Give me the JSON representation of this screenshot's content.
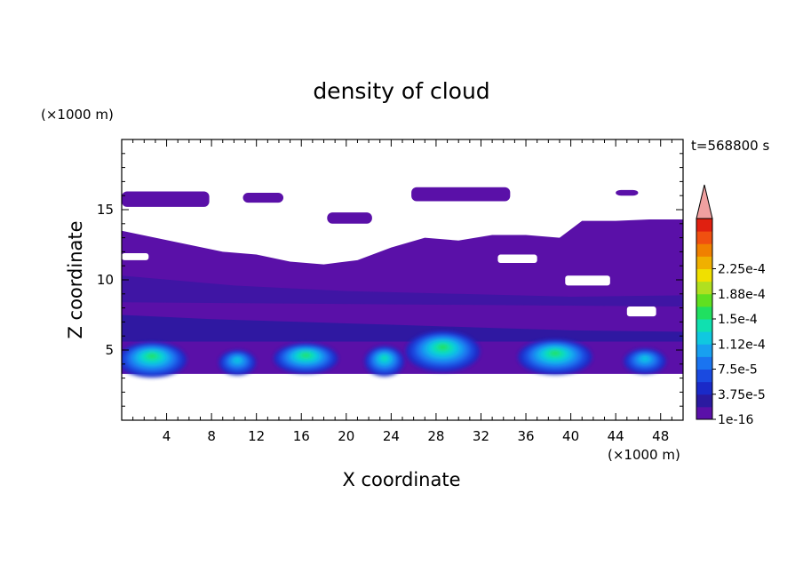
{
  "chart_data": {
    "type": "heatmap",
    "title": "density of cloud",
    "xlabel": "X coordinate",
    "ylabel": "Z coordinate",
    "x_unit": "(×1000 m)",
    "y_unit": "(×1000 m)",
    "time_label": "t=568800 s",
    "xlim": [
      0,
      50
    ],
    "ylim": [
      0,
      20
    ],
    "x_ticks": [
      4,
      8,
      12,
      16,
      20,
      24,
      28,
      32,
      36,
      40,
      44,
      48
    ],
    "y_ticks": [
      5,
      10,
      15
    ],
    "colorbar": {
      "labels": [
        "1e-16",
        "3.75e-5",
        "7.5e-5",
        "1.12e-4",
        "1.5e-4",
        "1.88e-4",
        "2.25e-4"
      ],
      "colors": [
        "#5a10a8",
        "#2a1aa0",
        "#1a2ac8",
        "#1a4ae0",
        "#1a74f0",
        "#18a0f0",
        "#10c8e0",
        "#10e0b0",
        "#20e060",
        "#60e020",
        "#b0e020",
        "#f0e000",
        "#f0b000",
        "#f08000",
        "#f05010",
        "#e02010"
      ],
      "extend_color": "#f0a0a0"
    },
    "fields": {
      "cloud_top": [
        [
          0,
          13.5
        ],
        [
          3,
          13.0
        ],
        [
          6,
          12.5
        ],
        [
          9,
          12.0
        ],
        [
          12,
          11.8
        ],
        [
          15,
          11.3
        ],
        [
          18,
          11.1
        ],
        [
          21,
          11.4
        ],
        [
          24,
          12.3
        ],
        [
          27,
          13.0
        ],
        [
          30,
          12.8
        ],
        [
          33,
          13.2
        ],
        [
          36,
          13.2
        ],
        [
          39,
          13.0
        ],
        [
          41,
          14.2
        ],
        [
          44,
          14.2
        ],
        [
          47,
          14.3
        ],
        [
          50,
          14.3
        ]
      ],
      "cloud_base": 3.3,
      "upper_layers": [
        {
          "x": [
            0,
            7.8
          ],
          "z": [
            15.2,
            16.3
          ]
        },
        {
          "x": [
            10.8,
            14.4
          ],
          "z": [
            15.5,
            16.2
          ]
        },
        {
          "x": [
            18.3,
            22.3
          ],
          "z": [
            14.0,
            14.8
          ]
        },
        {
          "x": [
            25.8,
            34.6
          ],
          "z": [
            15.6,
            16.6
          ]
        },
        {
          "x": [
            44.0,
            46.0
          ],
          "z": [
            16.0,
            16.4
          ]
        }
      ],
      "cores": [
        {
          "x": 2.7,
          "z": 4.3,
          "w": 2.8,
          "h": 0.7,
          "level": 6
        },
        {
          "x": 16.4,
          "z": 4.4,
          "w": 2.6,
          "h": 0.6,
          "level": 6
        },
        {
          "x": 23.4,
          "z": 4.2,
          "w": 1.6,
          "h": 0.6,
          "level": 5
        },
        {
          "x": 28.6,
          "z": 4.9,
          "w": 3.0,
          "h": 0.8,
          "level": 6
        },
        {
          "x": 38.6,
          "z": 4.5,
          "w": 3.0,
          "h": 0.7,
          "level": 6
        },
        {
          "x": 10.3,
          "z": 4.1,
          "w": 1.5,
          "h": 0.5,
          "level": 4
        },
        {
          "x": 46.6,
          "z": 4.2,
          "w": 1.7,
          "h": 0.5,
          "level": 4
        }
      ]
    }
  }
}
